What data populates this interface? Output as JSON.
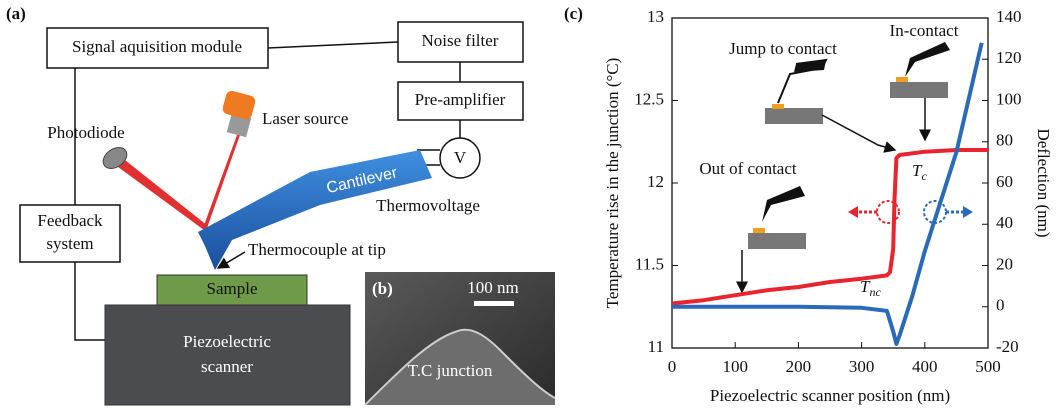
{
  "panel_a": {
    "label": "(a)",
    "signal_module": "Signal aquisition module",
    "noise_filter": "Noise filter",
    "pre_amplifier": "Pre-amplifier",
    "photodiode": "Photodiode",
    "laser_source": "Laser source",
    "voltmeter": "V",
    "cantilever": "Cantilever",
    "thermovoltage": "Thermovoltage",
    "feedback": [
      "Feedback",
      "system"
    ],
    "thermocouple": "Thermocouple at tip",
    "sample": "Sample",
    "scanner": [
      "Piezoelectric",
      "scanner"
    ]
  },
  "panel_b": {
    "label": "(b)",
    "scale_bar": "100 nm",
    "caption": "T.C junction"
  },
  "chart_data": {
    "type": "line",
    "panel_label": "(c)",
    "x_label": "Piezoelectric scanner position (nm)",
    "y_label": "Temperature rise in the junction (°C)",
    "y2_label": "Deflection (nm)",
    "annotations": {
      "jump": "Jump to contact",
      "in_contact": "In-contact",
      "out_contact": "Out of contact",
      "tc": {
        "main": "T",
        "sub": "c"
      },
      "tnc": {
        "main": "T",
        "sub": "nc"
      }
    },
    "xlim": [
      0,
      500
    ],
    "xticks": [
      0,
      100,
      200,
      300,
      400,
      500
    ],
    "ylim": [
      11,
      13
    ],
    "yticks": [
      11,
      11.5,
      12,
      12.5,
      13
    ],
    "y2lim": [
      -20,
      140
    ],
    "y2ticks": [
      -20,
      0,
      20,
      40,
      60,
      80,
      100,
      120,
      140
    ],
    "series": [
      {
        "color": "#e8252e",
        "axis": "y",
        "x": [
          0,
          50,
          100,
          150,
          200,
          250,
          300,
          340,
          345,
          350,
          352,
          355,
          360,
          400,
          450,
          500
        ],
        "values": [
          11.27,
          11.29,
          11.32,
          11.35,
          11.37,
          11.4,
          11.42,
          11.44,
          11.46,
          11.6,
          11.9,
          12.15,
          12.17,
          12.19,
          12.2,
          12.2
        ]
      },
      {
        "color": "#2a6ab8",
        "axis": "y2",
        "x": [
          0,
          100,
          200,
          300,
          340,
          350,
          355,
          360,
          380,
          400,
          450,
          490
        ],
        "values": [
          0,
          0,
          0,
          -0.5,
          -2,
          -12,
          -18,
          -14,
          5,
          27,
          75,
          128
        ]
      }
    ]
  }
}
